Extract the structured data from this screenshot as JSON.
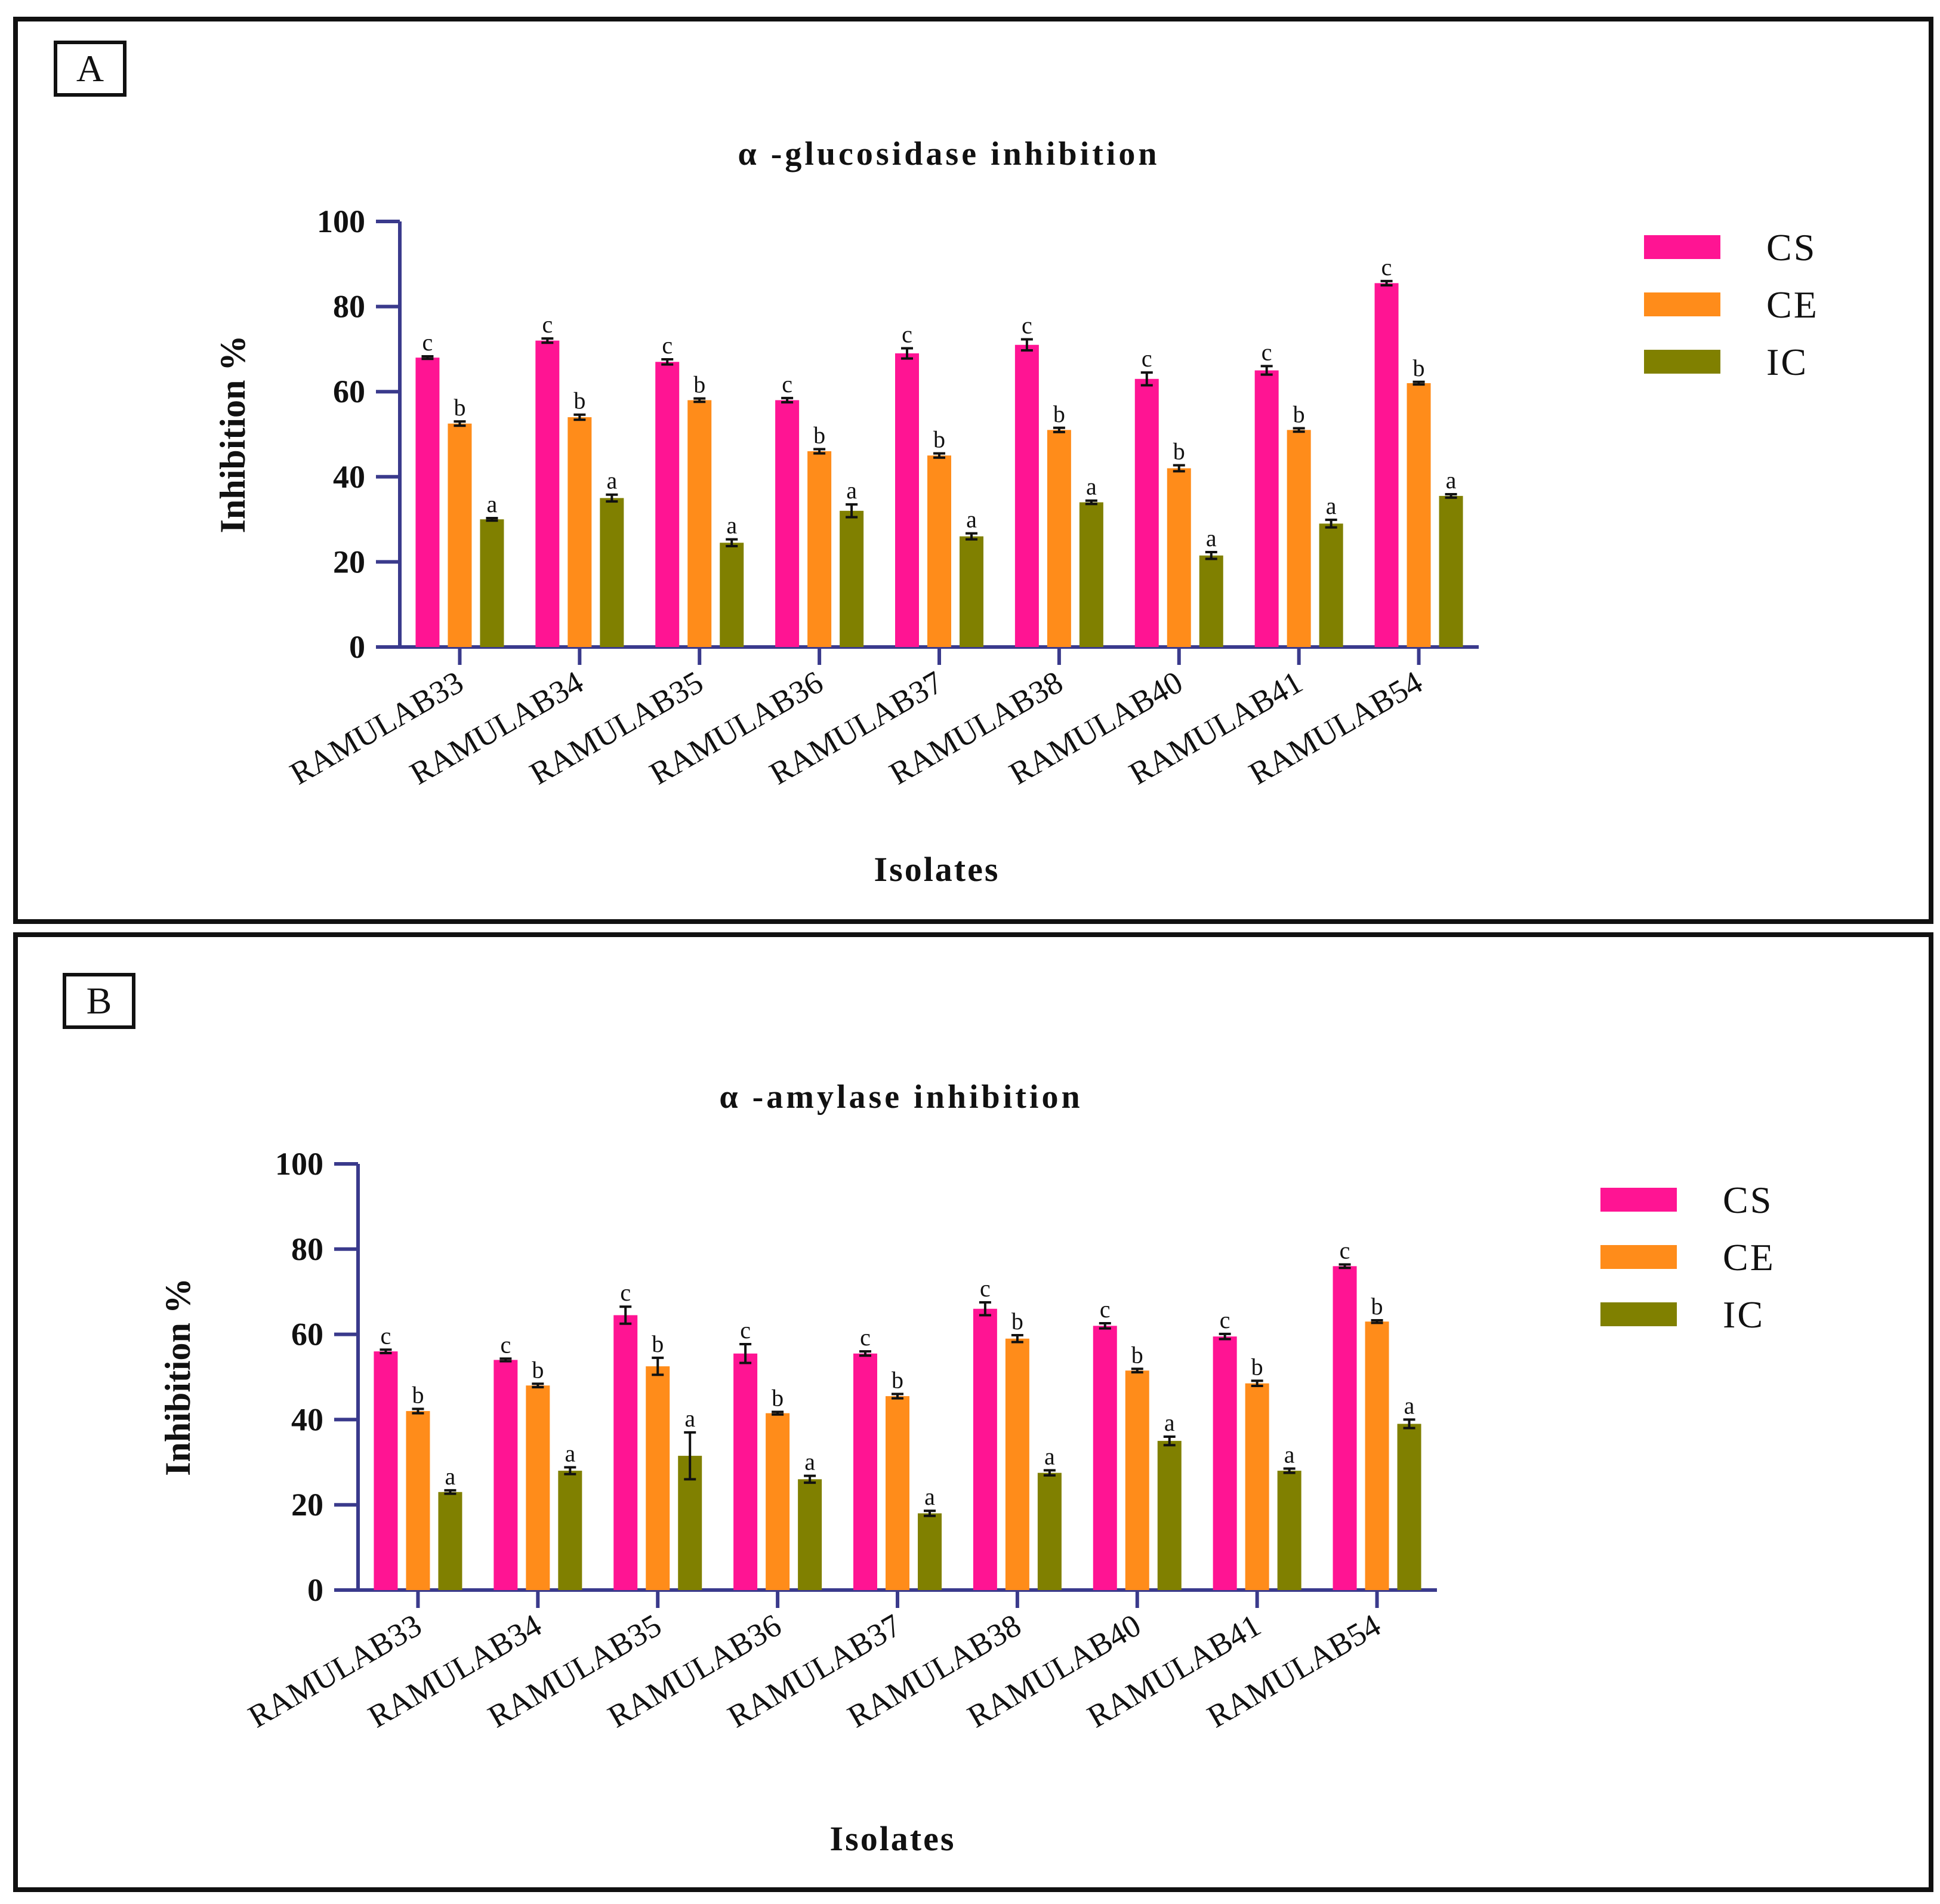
{
  "colors": {
    "CS": "#ff1493",
    "CE": "#ff8c1a",
    "IC": "#808000",
    "axis": "#3a3a8c"
  },
  "chart_data": [
    {
      "panel_label": "A",
      "type": "bar",
      "title": "α -glucosidase inhibition",
      "xlabel": "Isolates",
      "ylabel": "Inhibition %",
      "ylim": [
        0,
        100
      ],
      "yticks": [
        "0",
        "20",
        "40",
        "60",
        "80",
        "100"
      ],
      "legend_position": "right",
      "categories": [
        "RAMULAB33",
        "RAMULAB34",
        "RAMULAB35",
        "RAMULAB36",
        "RAMULAB37",
        "RAMULAB38",
        "RAMULAB40",
        "RAMULAB41",
        "RAMULAB54"
      ],
      "series": [
        {
          "name": "CS",
          "values": [
            68,
            72,
            67,
            58,
            69,
            71,
            63,
            65,
            85.5
          ],
          "errors": [
            0.3,
            0.5,
            0.6,
            0.5,
            1.2,
            1.3,
            1.5,
            1.0,
            0.5
          ],
          "letters": [
            "c",
            "c",
            "c",
            "c",
            "c",
            "c",
            "c",
            "c",
            "c"
          ]
        },
        {
          "name": "CE",
          "values": [
            52.5,
            54,
            58,
            46,
            45,
            51,
            42,
            51,
            62
          ],
          "errors": [
            0.5,
            0.6,
            0.4,
            0.5,
            0.5,
            0.5,
            0.7,
            0.4,
            0.3
          ],
          "letters": [
            "b",
            "b",
            "b",
            "b",
            "b",
            "b",
            "b",
            "b",
            "b"
          ]
        },
        {
          "name": "IC",
          "values": [
            30,
            35,
            24.5,
            32,
            26,
            34,
            21.5,
            29,
            35.5
          ],
          "errors": [
            0.3,
            0.8,
            0.8,
            1.5,
            0.7,
            0.4,
            0.8,
            0.9,
            0.4
          ],
          "letters": [
            "a",
            "a",
            "a",
            "a",
            "a",
            "a",
            "a",
            "a",
            "a"
          ]
        }
      ]
    },
    {
      "panel_label": "B",
      "type": "bar",
      "title": "α -amylase inhibition",
      "xlabel": "Isolates",
      "ylabel": "Inhibition %",
      "ylim": [
        0,
        100
      ],
      "yticks": [
        "0",
        "20",
        "40",
        "60",
        "80",
        "100"
      ],
      "legend_position": "right",
      "categories": [
        "RAMULAB33",
        "RAMULAB34",
        "RAMULAB35",
        "RAMULAB36",
        "RAMULAB37",
        "RAMULAB38",
        "RAMULAB40",
        "RAMULAB41",
        "RAMULAB54"
      ],
      "series": [
        {
          "name": "CS",
          "values": [
            56,
            54,
            64.5,
            55.5,
            55.5,
            66,
            62,
            59.5,
            76
          ],
          "errors": [
            0.4,
            0.3,
            2.0,
            2.2,
            0.5,
            1.5,
            0.6,
            0.6,
            0.4
          ],
          "letters": [
            "c",
            "c",
            "c",
            "c",
            "c",
            "c",
            "c",
            "c",
            "c"
          ]
        },
        {
          "name": "CE",
          "values": [
            42,
            48,
            52.5,
            41.5,
            45.5,
            59,
            51.5,
            48.5,
            63
          ],
          "errors": [
            0.5,
            0.4,
            2.0,
            0.3,
            0.5,
            0.8,
            0.4,
            0.6,
            0.3
          ],
          "letters": [
            "b",
            "b",
            "b",
            "b",
            "b",
            "b",
            "b",
            "b",
            "b"
          ]
        },
        {
          "name": "IC",
          "values": [
            23,
            28,
            31.5,
            26,
            18,
            27.5,
            35,
            28,
            39
          ],
          "errors": [
            0.4,
            0.8,
            5.5,
            0.8,
            0.6,
            0.6,
            1.0,
            0.5,
            1.0
          ],
          "letters": [
            "a",
            "a",
            "a",
            "a",
            "a",
            "a",
            "a",
            "a",
            "a"
          ]
        }
      ]
    }
  ]
}
